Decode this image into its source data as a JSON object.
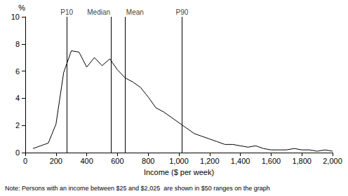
{
  "chart_data": {
    "type": "line",
    "y_label": "%",
    "x_label": "Income ($ per week)",
    "note": "Note: Persons with an income between $25 and $2,025  are shown in $50 ranges on the graph",
    "x": [
      50,
      100,
      150,
      200,
      250,
      300,
      350,
      400,
      450,
      500,
      550,
      600,
      650,
      700,
      750,
      800,
      850,
      900,
      950,
      1000,
      1050,
      1100,
      1150,
      1200,
      1250,
      1300,
      1350,
      1400,
      1450,
      1500,
      1550,
      1600,
      1650,
      1700,
      1750,
      1800,
      1850,
      1900,
      1950,
      2000
    ],
    "values": [
      0.3,
      0.5,
      0.7,
      2.1,
      5.9,
      7.5,
      7.4,
      6.3,
      7.0,
      6.4,
      6.9,
      6.1,
      5.5,
      5.2,
      4.8,
      4.1,
      3.3,
      3.0,
      2.6,
      2.2,
      1.8,
      1.4,
      1.2,
      1.0,
      0.8,
      0.6,
      0.6,
      0.5,
      0.4,
      0.5,
      0.3,
      0.2,
      0.2,
      0.2,
      0.3,
      0.2,
      0.2,
      0.1,
      0.2,
      0.1
    ],
    "color": "#000000",
    "annotations": [
      {
        "label": "P10",
        "x": 270
      },
      {
        "label": "Median",
        "x": 560
      },
      {
        "label": "Mean",
        "x": 650
      },
      {
        "label": "P90",
        "x": 1020
      }
    ],
    "xlim": [
      0,
      2000
    ],
    "xticks": [
      0,
      200,
      400,
      600,
      800,
      1000,
      1200,
      1400,
      1600,
      1800,
      2000
    ],
    "ylim": [
      0,
      10
    ],
    "yticks": [
      0,
      2,
      4,
      6,
      8,
      10
    ],
    "grid": false
  }
}
